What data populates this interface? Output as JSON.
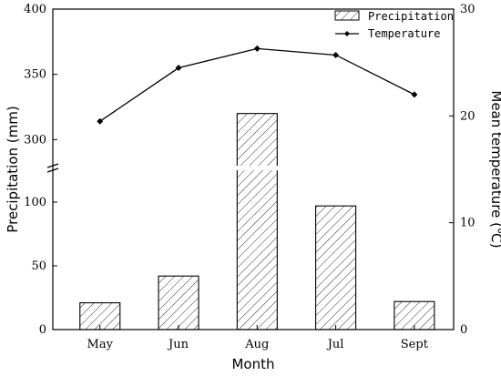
{
  "chart_data": {
    "type": "bar",
    "categories": [
      "May",
      "Jun",
      "Aug",
      "Jul",
      "Sept"
    ],
    "xlabel": "Month",
    "ylabel": "Precipitation (mm)",
    "y2label": "Mean temperature (℃)",
    "axis_break": {
      "between": [
        125,
        280
      ]
    },
    "ylim_lower": [
      0,
      125
    ],
    "ylim_upper": [
      280,
      400
    ],
    "y_ticks": [
      0,
      50,
      100,
      300,
      350,
      400
    ],
    "y2lim": [
      0,
      30
    ],
    "y2_ticks": [
      0,
      10,
      20,
      30
    ],
    "series": [
      {
        "name": "Precipitation",
        "type": "bar",
        "axis": "left",
        "fill": "hatched",
        "values": [
          21,
          42,
          320,
          97,
          22
        ]
      },
      {
        "name": "Temperature",
        "type": "line",
        "axis": "right",
        "marker": "diamond",
        "values": [
          19.5,
          24.5,
          26.3,
          25.7,
          22.0
        ]
      }
    ],
    "legend": {
      "placement": "top-right"
    },
    "grid": false
  }
}
